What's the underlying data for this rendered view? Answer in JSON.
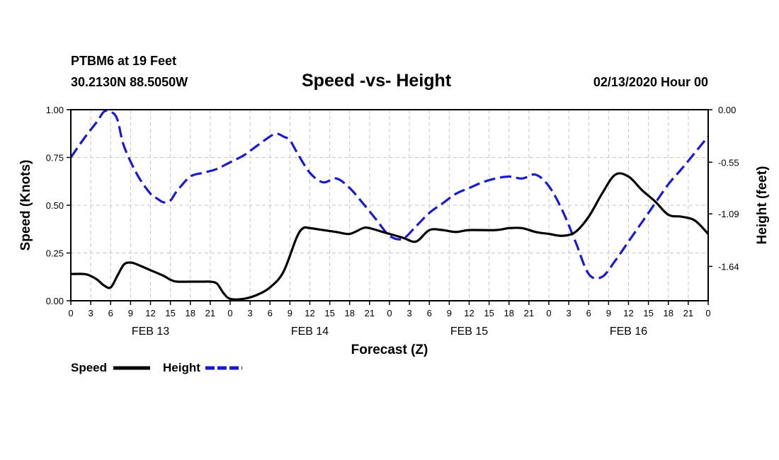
{
  "header": {
    "station_line": "PTBM6 at 19 Feet",
    "coords_line": "30.2130N 88.5050W",
    "title": "Speed -vs- Height",
    "run_time": "02/13/2020 Hour 00"
  },
  "chart_data": {
    "type": "line",
    "title": "Speed -vs- Height",
    "xlabel": "Forecast (Z)",
    "ylabel": "Speed (Knots)",
    "y2label": "Height (feet)",
    "xlim": [
      0,
      96
    ],
    "ylim": [
      0,
      1
    ],
    "y2lim": [
      -2.0,
      0.0
    ],
    "grid": true,
    "legend_position": "bottom-left",
    "x_tick_labels": [
      "0",
      "3",
      "6",
      "9",
      "12",
      "15",
      "18",
      "21",
      "0",
      "3",
      "6",
      "9",
      "12",
      "15",
      "18",
      "21",
      "0",
      "3",
      "6",
      "9",
      "12",
      "15",
      "18",
      "21",
      "0",
      "3",
      "6",
      "9",
      "12",
      "15",
      "18",
      "21",
      "0"
    ],
    "day_labels": [
      {
        "label": "FEB 13",
        "hour": 12
      },
      {
        "label": "FEB 14",
        "hour": 36
      },
      {
        "label": "FEB 15",
        "hour": 60
      },
      {
        "label": "FEB 16",
        "hour": 84
      }
    ],
    "y_ticks": [
      "0.00",
      "0.25",
      "0.50",
      "0.75",
      "1.00"
    ],
    "y2_ticks": [
      "0.00",
      "-0.55",
      "-1.09",
      "-1.64"
    ],
    "series": [
      {
        "name": "Speed",
        "axis": "left",
        "color": "#000000",
        "style": "solid",
        "x": [
          0,
          2,
          3,
          4,
          5,
          6,
          7,
          8,
          9,
          10,
          12,
          14,
          15,
          16,
          18,
          20,
          21,
          22,
          23,
          24,
          26,
          28,
          30,
          32,
          34,
          35,
          36,
          38,
          40,
          42,
          44,
          45,
          47,
          50,
          52,
          54,
          56,
          58,
          60,
          64,
          66,
          68,
          70,
          72,
          74,
          76,
          78,
          80,
          82,
          84,
          86,
          88,
          90,
          92,
          94,
          96
        ],
        "values": [
          0.14,
          0.14,
          0.13,
          0.11,
          0.08,
          0.07,
          0.13,
          0.19,
          0.2,
          0.19,
          0.16,
          0.13,
          0.11,
          0.1,
          0.1,
          0.1,
          0.1,
          0.09,
          0.04,
          0.01,
          0.01,
          0.03,
          0.07,
          0.15,
          0.33,
          0.38,
          0.38,
          0.37,
          0.36,
          0.35,
          0.38,
          0.38,
          0.36,
          0.33,
          0.31,
          0.37,
          0.37,
          0.36,
          0.37,
          0.37,
          0.38,
          0.38,
          0.36,
          0.35,
          0.34,
          0.36,
          0.44,
          0.56,
          0.66,
          0.65,
          0.58,
          0.52,
          0.45,
          0.44,
          0.42,
          0.35
        ]
      },
      {
        "name": "Height",
        "axis": "right",
        "color": "#1a1ad0",
        "style": "dashed",
        "x": [
          0,
          2,
          4,
          5,
          6,
          7,
          8,
          10,
          12,
          13,
          14,
          15,
          16,
          18,
          20,
          22,
          24,
          26,
          28,
          30,
          31,
          32,
          33,
          34,
          36,
          38,
          40,
          42,
          44,
          46,
          48,
          50,
          52,
          54,
          56,
          58,
          60,
          62,
          64,
          66,
          68,
          70,
          72,
          74,
          76,
          78,
          80,
          82,
          84,
          86,
          88,
          90,
          92,
          94,
          96
        ],
        "values": [
          -0.5,
          -0.3,
          -0.12,
          -0.02,
          -0.02,
          -0.1,
          -0.38,
          -0.68,
          -0.88,
          -0.93,
          -0.97,
          -0.95,
          -0.85,
          -0.7,
          -0.66,
          -0.62,
          -0.55,
          -0.48,
          -0.38,
          -0.28,
          -0.25,
          -0.28,
          -0.32,
          -0.44,
          -0.66,
          -0.76,
          -0.72,
          -0.82,
          -0.98,
          -1.15,
          -1.32,
          -1.35,
          -1.22,
          -1.08,
          -0.98,
          -0.88,
          -0.82,
          -0.76,
          -0.72,
          -0.7,
          -0.72,
          -0.68,
          -0.8,
          -1.05,
          -1.38,
          -1.72,
          -1.75,
          -1.58,
          -1.38,
          -1.18,
          -0.98,
          -0.78,
          -0.62,
          -0.45,
          -0.28
        ]
      }
    ]
  },
  "legend": {
    "speed_label": "Speed",
    "height_label": "Height"
  }
}
